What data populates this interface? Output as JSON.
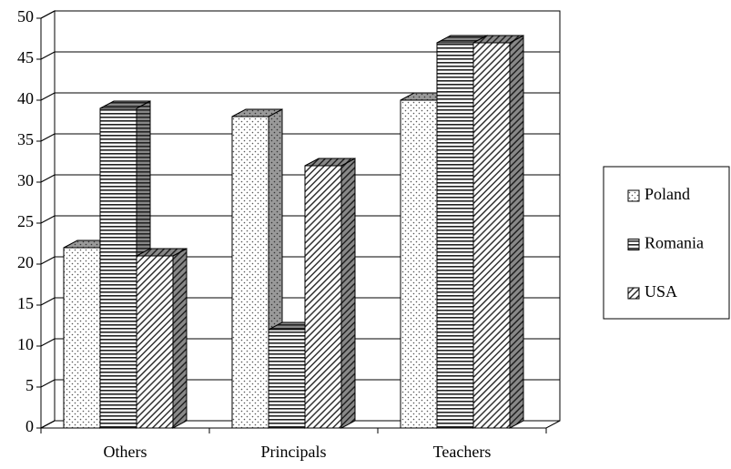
{
  "chart_data": {
    "type": "bar3d",
    "categories": [
      "Others",
      "Principals",
      "Teachers"
    ],
    "series": [
      {
        "name": "Poland",
        "pattern": "dots",
        "values": [
          22,
          38,
          40
        ]
      },
      {
        "name": "Romania",
        "pattern": "hlines",
        "values": [
          39,
          12,
          47
        ]
      },
      {
        "name": "USA",
        "pattern": "diag",
        "values": [
          21,
          32,
          47
        ]
      }
    ],
    "ylim": [
      0,
      50
    ],
    "yticks": [
      0,
      5,
      10,
      15,
      20,
      25,
      30,
      35,
      40,
      45,
      50
    ],
    "grid": true,
    "legend": "right"
  }
}
